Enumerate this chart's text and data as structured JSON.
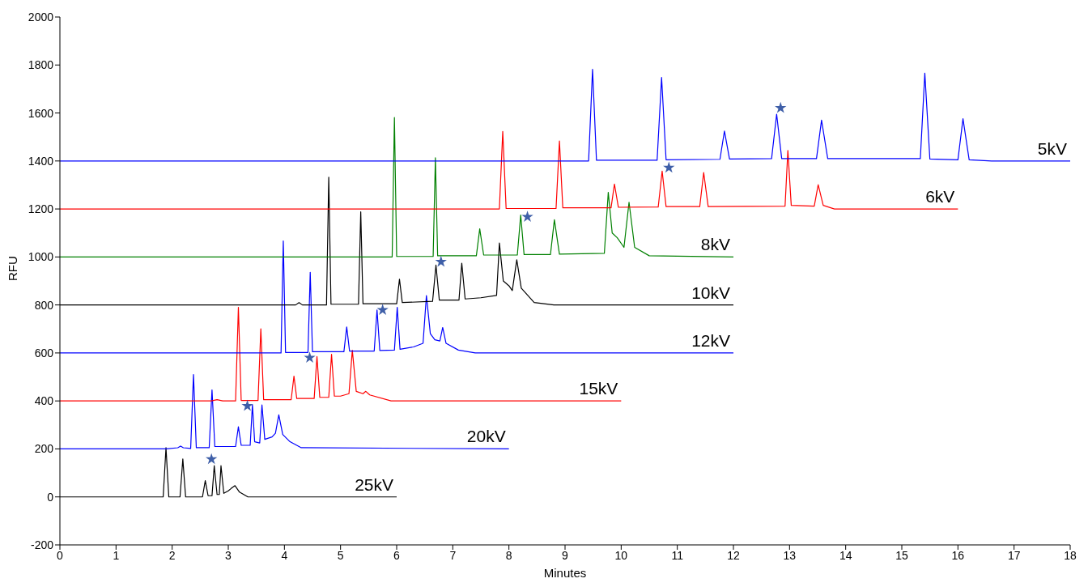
{
  "chart_data": {
    "type": "line",
    "xlabel": "Minutes",
    "ylabel": "RFU",
    "xlim": [
      0,
      18
    ],
    "xticks": [
      0,
      1,
      2,
      3,
      4,
      5,
      6,
      7,
      8,
      9,
      10,
      11,
      12,
      13,
      14,
      15,
      16,
      17,
      18
    ],
    "ylim": [
      -200,
      2000
    ],
    "yticks": [
      -200,
      0,
      200,
      400,
      600,
      800,
      1000,
      1200,
      1400,
      1600,
      1800,
      2000
    ],
    "series": [
      {
        "name": "25kV",
        "color": "#000000",
        "x": [
          0,
          1.84,
          1.89,
          1.94,
          2.14,
          2.19,
          2.24,
          2.54,
          2.59,
          2.64,
          2.71,
          2.75,
          2.8,
          2.84,
          2.87,
          2.92,
          3.0,
          3.05,
          3.12,
          3.2,
          3.35,
          6
        ],
        "values": [
          0,
          0,
          205,
          0,
          0,
          158,
          0,
          0,
          68,
          5,
          5,
          130,
          10,
          10,
          130,
          15,
          25,
          35,
          47,
          20,
          0,
          0
        ]
      },
      {
        "name": "20kV",
        "color": "#0000ff",
        "x": [
          0,
          1.9,
          2.1,
          2.15,
          2.2,
          2.33,
          2.38,
          2.43,
          2.66,
          2.71,
          2.76,
          3.13,
          3.18,
          3.23,
          3.39,
          3.43,
          3.47,
          3.56,
          3.6,
          3.65,
          3.78,
          3.84,
          3.9,
          3.97,
          4.1,
          4.3,
          8
        ],
        "values": [
          200,
          200,
          205,
          212,
          205,
          202,
          510,
          205,
          205,
          446,
          210,
          210,
          292,
          215,
          215,
          384,
          230,
          225,
          383,
          240,
          250,
          265,
          342,
          260,
          230,
          205,
          200
        ]
      },
      {
        "name": "15kV",
        "color": "#ff0000",
        "x": [
          0,
          2.7,
          2.8,
          2.9,
          3.13,
          3.18,
          3.23,
          3.53,
          3.58,
          3.63,
          4.12,
          4.17,
          4.22,
          4.53,
          4.58,
          4.63,
          4.79,
          4.84,
          4.89,
          5.0,
          5.15,
          5.21,
          5.28,
          5.4,
          5.45,
          5.52,
          5.9,
          10
        ],
        "values": [
          400,
          400,
          405,
          400,
          400,
          790,
          402,
          402,
          701,
          405,
          405,
          503,
          410,
          410,
          585,
          415,
          415,
          594,
          420,
          420,
          430,
          611,
          440,
          430,
          440,
          425,
          400,
          400
        ]
      },
      {
        "name": "12kV",
        "color": "#0000ff",
        "x": [
          0,
          3.94,
          3.98,
          4.02,
          4.42,
          4.46,
          4.5,
          5.06,
          5.11,
          5.16,
          5.6,
          5.65,
          5.7,
          5.96,
          6.01,
          6.06,
          6.3,
          6.47,
          6.53,
          6.6,
          6.68,
          6.77,
          6.82,
          6.88,
          7.1,
          7.4,
          12
        ],
        "values": [
          600,
          600,
          1067,
          602,
          602,
          936,
          605,
          605,
          708,
          608,
          608,
          779,
          610,
          612,
          790,
          615,
          625,
          640,
          839,
          680,
          655,
          650,
          706,
          640,
          612,
          600,
          600
        ]
      },
      {
        "name": "10kV",
        "color": "#000000",
        "x": [
          0,
          4.2,
          4.26,
          4.32,
          4.75,
          4.79,
          4.83,
          5.32,
          5.36,
          5.4,
          6.0,
          6.05,
          6.1,
          6.64,
          6.7,
          6.76,
          7.11,
          7.16,
          7.22,
          7.5,
          7.78,
          7.83,
          7.9,
          8.0,
          8.06,
          8.14,
          8.22,
          8.45,
          8.8,
          12
        ],
        "values": [
          800,
          800,
          810,
          800,
          800,
          1332,
          803,
          803,
          1188,
          805,
          805,
          907,
          810,
          815,
          966,
          820,
          820,
          974,
          825,
          830,
          840,
          1058,
          900,
          880,
          860,
          988,
          870,
          810,
          800,
          800
        ]
      },
      {
        "name": "8kV",
        "color": "#008000",
        "x": [
          0,
          5.92,
          5.96,
          6.0,
          6.65,
          6.69,
          6.73,
          7.42,
          7.48,
          7.55,
          8.15,
          8.21,
          8.27,
          8.74,
          8.81,
          8.9,
          9.7,
          9.77,
          9.84,
          9.93,
          10.05,
          10.14,
          10.24,
          10.5,
          12
        ],
        "values": [
          1000,
          1000,
          1581,
          1002,
          1002,
          1413,
          1005,
          1005,
          1117,
          1008,
          1008,
          1175,
          1010,
          1010,
          1155,
          1012,
          1015,
          1269,
          1100,
          1080,
          1040,
          1228,
          1040,
          1005,
          1000
        ]
      },
      {
        "name": "6kV",
        "color": "#ff0000",
        "x": [
          0,
          7.83,
          7.89,
          7.95,
          8.84,
          8.9,
          8.96,
          9.82,
          9.88,
          9.95,
          10.66,
          10.73,
          10.8,
          11.4,
          11.47,
          11.55,
          12.92,
          12.97,
          13.03,
          13.44,
          13.51,
          13.6,
          13.8,
          16
        ],
        "values": [
          1200,
          1200,
          1523,
          1202,
          1202,
          1483,
          1205,
          1205,
          1304,
          1207,
          1208,
          1358,
          1210,
          1210,
          1352,
          1210,
          1212,
          1444,
          1215,
          1212,
          1301,
          1215,
          1200,
          1200
        ]
      },
      {
        "name": "5kV",
        "color": "#0000ff",
        "x": [
          0,
          9.42,
          9.49,
          9.56,
          10.64,
          10.72,
          10.8,
          11.76,
          11.84,
          11.93,
          12.68,
          12.77,
          12.86,
          13.48,
          13.57,
          13.68,
          15.33,
          15.41,
          15.5,
          16.0,
          16.09,
          16.2,
          16.6,
          18
        ],
        "values": [
          1400,
          1400,
          1782,
          1403,
          1403,
          1748,
          1405,
          1407,
          1525,
          1408,
          1410,
          1595,
          1410,
          1410,
          1570,
          1410,
          1410,
          1766,
          1408,
          1405,
          1576,
          1405,
          1400,
          1400
        ]
      },
      {
        "type": "scatter",
        "marker": "star",
        "color": "#3f5fa8",
        "x": [
          2.7,
          3.34,
          4.45,
          5.75,
          6.79,
          8.33,
          10.85,
          12.84
        ],
        "values": [
          157,
          379,
          580,
          779,
          980,
          1167,
          1372,
          1621
        ]
      }
    ]
  }
}
